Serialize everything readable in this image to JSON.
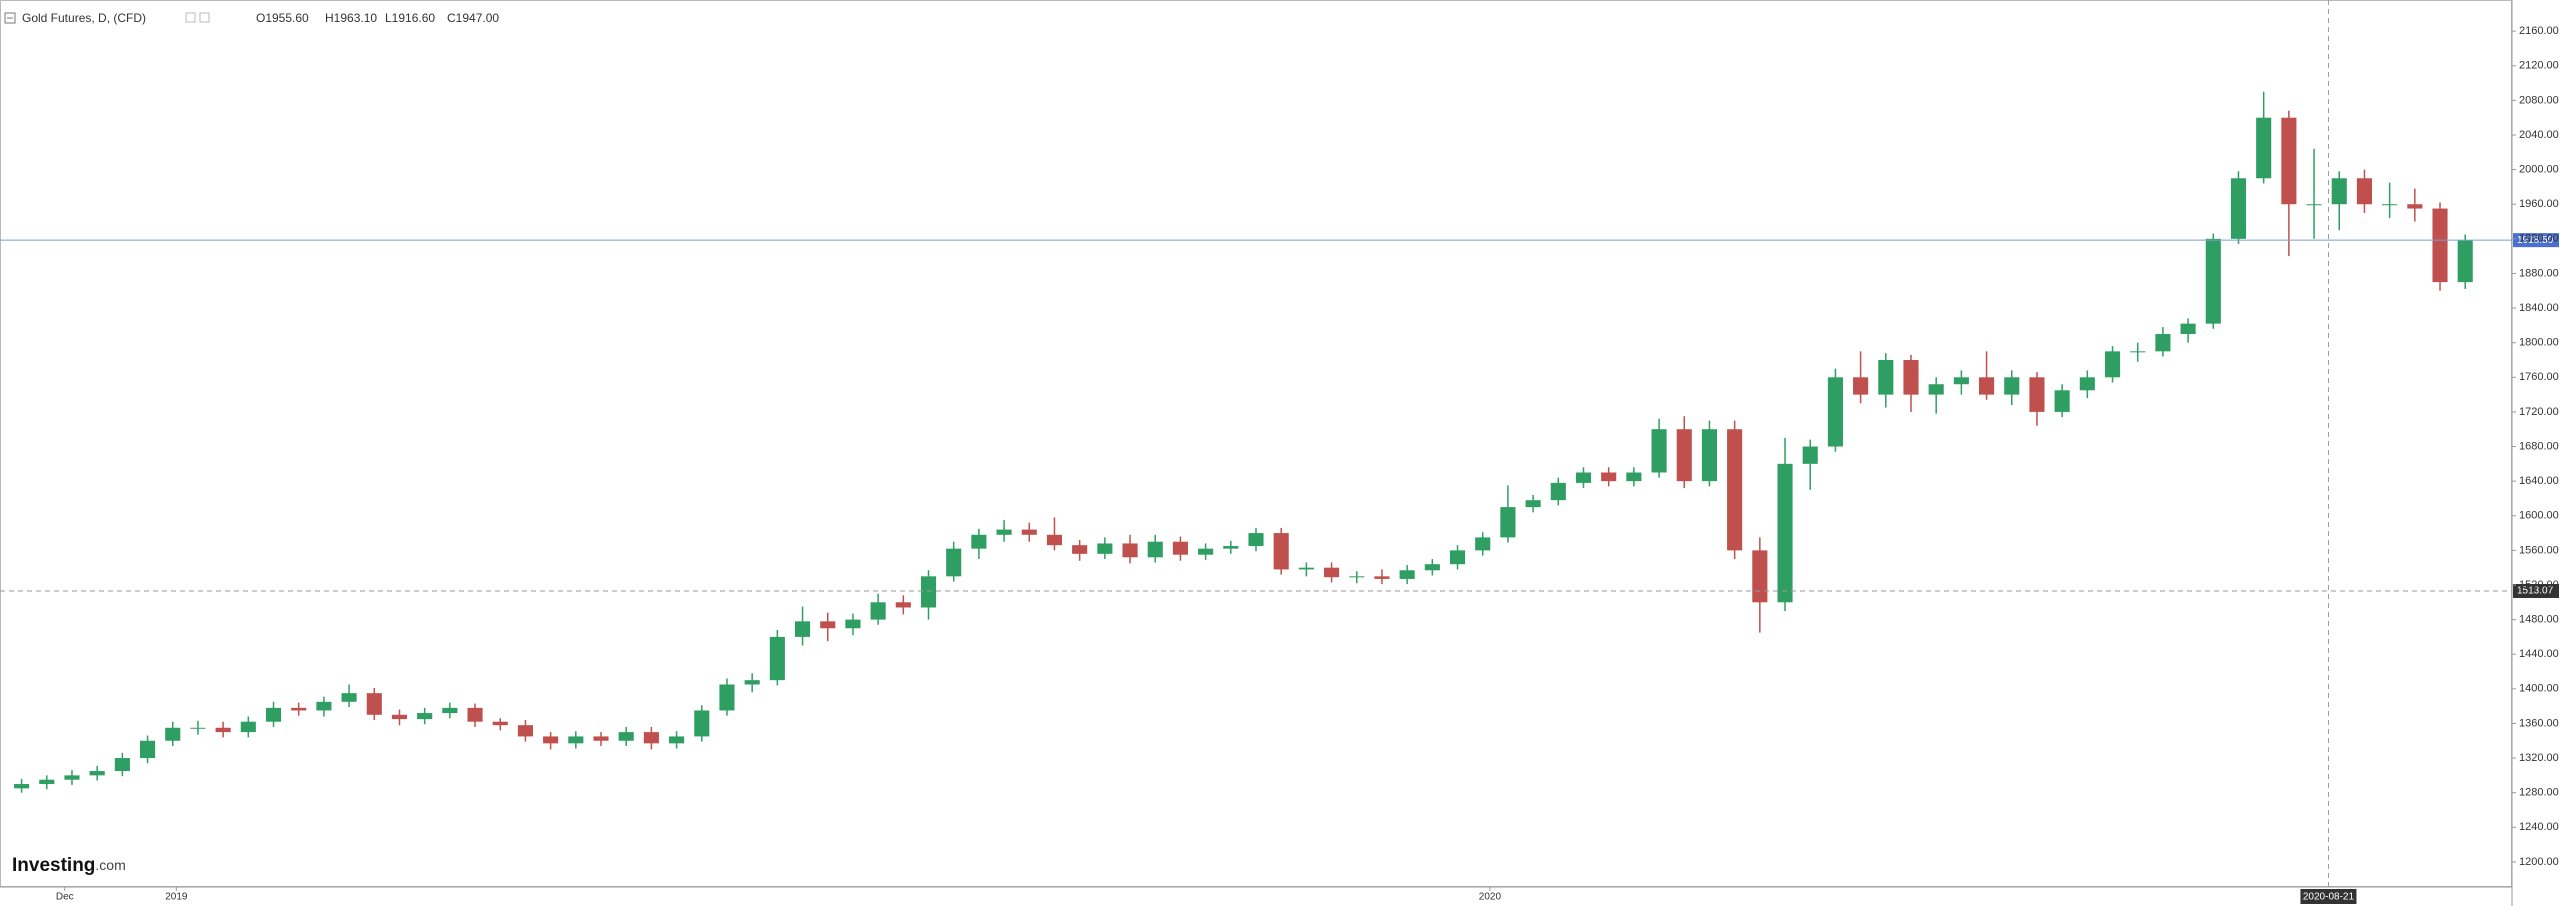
{
  "chart_data": {
    "type": "candlestick",
    "title": "Gold Futures, D, (CFD)",
    "header_values": [
      "O1955.60",
      "H1963.10",
      "L1916.60",
      "C1947.00"
    ],
    "watermark": [
      "Investing",
      ".com"
    ],
    "up_color": "#2f9e63",
    "down_color": "#c0504d",
    "x": [
      "2018-11-19",
      "2018-11-26",
      "2018-12-03",
      "2018-12-10",
      "2018-12-17",
      "2018-12-24",
      "2018-12-31",
      "2019-01-07",
      "2019-01-14",
      "2019-01-21",
      "2019-01-28",
      "2019-02-04",
      "2019-02-11",
      "2019-02-18",
      "2019-02-25",
      "2019-03-04",
      "2019-03-11",
      "2019-03-18",
      "2019-03-25",
      "2019-04-01",
      "2019-04-08",
      "2019-04-15",
      "2019-04-22",
      "2019-04-29",
      "2019-05-06",
      "2019-05-13",
      "2019-05-20",
      "2019-05-27",
      "2019-06-03",
      "2019-06-10",
      "2019-06-17",
      "2019-06-24",
      "2019-07-01",
      "2019-07-08",
      "2019-07-15",
      "2019-07-22",
      "2019-07-29",
      "2019-08-05",
      "2019-08-12",
      "2019-08-19",
      "2019-08-26",
      "2019-09-02",
      "2019-09-09",
      "2019-09-16",
      "2019-09-23",
      "2019-09-30",
      "2019-10-07",
      "2019-10-14",
      "2019-10-21",
      "2019-10-28",
      "2019-11-04",
      "2019-11-11",
      "2019-11-18",
      "2019-11-25",
      "2019-12-02",
      "2019-12-09",
      "2019-12-16",
      "2019-12-23",
      "2019-12-30",
      "2020-01-06",
      "2020-01-13",
      "2020-01-20",
      "2020-01-27",
      "2020-02-03",
      "2020-02-10",
      "2020-02-17",
      "2020-02-24",
      "2020-03-02",
      "2020-03-09",
      "2020-03-16",
      "2020-03-23",
      "2020-03-30",
      "2020-04-06",
      "2020-04-13",
      "2020-04-20",
      "2020-04-27",
      "2020-05-04",
      "2020-05-11",
      "2020-05-18",
      "2020-05-25",
      "2020-06-01",
      "2020-06-08",
      "2020-06-15",
      "2020-06-22",
      "2020-06-29",
      "2020-07-06",
      "2020-07-13",
      "2020-07-20",
      "2020-07-27",
      "2020-08-03",
      "2020-08-10",
      "2020-08-17",
      "2020-08-24",
      "2020-08-31",
      "2020-09-07",
      "2020-09-14",
      "2020-09-21",
      "2020-09-28"
    ],
    "ohlc": [
      [
        1285,
        1296,
        1280,
        1290
      ],
      [
        1290,
        1300,
        1284,
        1295
      ],
      [
        1295,
        1306,
        1289,
        1300
      ],
      [
        1300,
        1311,
        1294,
        1305
      ],
      [
        1305,
        1326,
        1299,
        1320
      ],
      [
        1320,
        1346,
        1314,
        1340
      ],
      [
        1340,
        1362,
        1334,
        1355
      ],
      [
        1355,
        1363,
        1347,
        1355
      ],
      [
        1355,
        1362,
        1344,
        1350
      ],
      [
        1350,
        1368,
        1344,
        1362
      ],
      [
        1362,
        1385,
        1356,
        1378
      ],
      [
        1378,
        1384,
        1369,
        1375
      ],
      [
        1375,
        1391,
        1368,
        1385
      ],
      [
        1385,
        1405,
        1379,
        1395
      ],
      [
        1395,
        1401,
        1364,
        1370
      ],
      [
        1370,
        1376,
        1358,
        1365
      ],
      [
        1365,
        1378,
        1359,
        1372
      ],
      [
        1372,
        1384,
        1366,
        1378
      ],
      [
        1378,
        1383,
        1356,
        1362
      ],
      [
        1362,
        1366,
        1352,
        1358
      ],
      [
        1358,
        1364,
        1339,
        1345
      ],
      [
        1345,
        1350,
        1330,
        1337
      ],
      [
        1337,
        1351,
        1331,
        1345
      ],
      [
        1345,
        1350,
        1334,
        1340
      ],
      [
        1340,
        1356,
        1334,
        1350
      ],
      [
        1350,
        1356,
        1330,
        1337
      ],
      [
        1337,
        1351,
        1331,
        1345
      ],
      [
        1345,
        1381,
        1339,
        1375
      ],
      [
        1375,
        1412,
        1369,
        1405
      ],
      [
        1405,
        1418,
        1396,
        1410
      ],
      [
        1410,
        1468,
        1404,
        1460
      ],
      [
        1460,
        1495,
        1450,
        1478
      ],
      [
        1478,
        1488,
        1455,
        1470
      ],
      [
        1470,
        1487,
        1462,
        1480
      ],
      [
        1480,
        1510,
        1474,
        1500
      ],
      [
        1500,
        1508,
        1486,
        1494
      ],
      [
        1494,
        1537,
        1480,
        1530
      ],
      [
        1530,
        1570,
        1524,
        1562
      ],
      [
        1562,
        1585,
        1550,
        1578
      ],
      [
        1578,
        1595,
        1570,
        1584
      ],
      [
        1584,
        1592,
        1570,
        1578
      ],
      [
        1578,
        1598,
        1560,
        1566
      ],
      [
        1566,
        1572,
        1548,
        1556
      ],
      [
        1556,
        1575,
        1550,
        1568
      ],
      [
        1568,
        1578,
        1545,
        1552
      ],
      [
        1552,
        1578,
        1546,
        1570
      ],
      [
        1570,
        1576,
        1548,
        1555
      ],
      [
        1555,
        1568,
        1549,
        1562
      ],
      [
        1562,
        1571,
        1556,
        1565
      ],
      [
        1565,
        1586,
        1559,
        1580
      ],
      [
        1580,
        1586,
        1532,
        1538
      ],
      [
        1538,
        1546,
        1530,
        1540
      ],
      [
        1540,
        1546,
        1523,
        1529
      ],
      [
        1529,
        1536,
        1522,
        1530
      ],
      [
        1530,
        1538,
        1521,
        1527
      ],
      [
        1527,
        1543,
        1521,
        1537
      ],
      [
        1537,
        1550,
        1531,
        1544
      ],
      [
        1544,
        1566,
        1538,
        1560
      ],
      [
        1560,
        1581,
        1554,
        1575
      ],
      [
        1575,
        1635,
        1569,
        1610
      ],
      [
        1610,
        1624,
        1604,
        1618
      ],
      [
        1618,
        1644,
        1612,
        1638
      ],
      [
        1638,
        1656,
        1632,
        1650
      ],
      [
        1650,
        1656,
        1634,
        1640
      ],
      [
        1640,
        1656,
        1634,
        1650
      ],
      [
        1650,
        1712,
        1644,
        1700
      ],
      [
        1700,
        1715,
        1632,
        1640
      ],
      [
        1640,
        1710,
        1634,
        1700
      ],
      [
        1700,
        1710,
        1550,
        1560
      ],
      [
        1560,
        1575,
        1465,
        1500
      ],
      [
        1500,
        1690,
        1490,
        1660
      ],
      [
        1660,
        1688,
        1630,
        1680
      ],
      [
        1680,
        1770,
        1674,
        1760
      ],
      [
        1760,
        1790,
        1730,
        1740
      ],
      [
        1740,
        1788,
        1725,
        1780
      ],
      [
        1780,
        1786,
        1720,
        1740
      ],
      [
        1740,
        1760,
        1718,
        1752
      ],
      [
        1752,
        1768,
        1740,
        1760
      ],
      [
        1760,
        1790,
        1734,
        1740
      ],
      [
        1740,
        1768,
        1728,
        1760
      ],
      [
        1760,
        1766,
        1704,
        1720
      ],
      [
        1720,
        1752,
        1714,
        1745
      ],
      [
        1745,
        1768,
        1736,
        1760
      ],
      [
        1760,
        1796,
        1754,
        1790
      ],
      [
        1790,
        1800,
        1778,
        1790
      ],
      [
        1790,
        1818,
        1784,
        1810
      ],
      [
        1810,
        1828,
        1800,
        1822
      ],
      [
        1822,
        1926,
        1816,
        1920
      ],
      [
        1920,
        1998,
        1914,
        1990
      ],
      [
        1990,
        2090,
        1984,
        2060
      ],
      [
        2060,
        2068,
        1900,
        1960
      ],
      [
        1960,
        2024,
        1920,
        1960
      ],
      [
        1960,
        1998,
        1930,
        1990
      ],
      [
        1990,
        2000,
        1950,
        1960
      ],
      [
        1960,
        1985,
        1944,
        1960
      ],
      [
        1960,
        1978,
        1940,
        1955
      ],
      [
        1955,
        1962,
        1860,
        1870
      ],
      [
        1870,
        1925,
        1862,
        1918
      ]
    ],
    "xlim": [
      "2018-11-13",
      "2020-10-11"
    ],
    "xticks": [
      {
        "value": "2018-12-01",
        "label": "Dec"
      },
      {
        "value": "2019-01-01",
        "label": "2019"
      },
      {
        "value": "2020-01-01",
        "label": "2020"
      }
    ],
    "ylim": [
      1171,
      2196
    ],
    "yticks": [
      {
        "value": 1200,
        "label": "1200.00"
      },
      {
        "value": 1240,
        "label": "1240.00"
      },
      {
        "value": 1280,
        "label": "1280.00"
      },
      {
        "value": 1320,
        "label": "1320.00"
      },
      {
        "value": 1360,
        "label": "1360.00"
      },
      {
        "value": 1400,
        "label": "1400.00"
      },
      {
        "value": 1440,
        "label": "1440.00"
      },
      {
        "value": 1480,
        "label": "1480.00"
      },
      {
        "value": 1520,
        "label": "1520.00"
      },
      {
        "value": 1560,
        "label": "1560.00"
      },
      {
        "value": 1600,
        "label": "1600.00"
      },
      {
        "value": 1640,
        "label": "1640.00"
      },
      {
        "value": 1680,
        "label": "1680.00"
      },
      {
        "value": 1720,
        "label": "1720.00"
      },
      {
        "value": 1760,
        "label": "1760.00"
      },
      {
        "value": 1800,
        "label": "1800.00"
      },
      {
        "value": 1840,
        "label": "1840.00"
      },
      {
        "value": 1880,
        "label": "1880.00"
      },
      {
        "value": 1920,
        "label": "1920.00"
      },
      {
        "value": 1960,
        "label": "1960.00"
      },
      {
        "value": 2000,
        "label": "2000.00"
      },
      {
        "value": 2040,
        "label": "2040.00"
      },
      {
        "value": 2080,
        "label": "2080.00"
      },
      {
        "value": 2120,
        "label": "2120.00"
      },
      {
        "value": 2160,
        "label": "2160.00"
      }
    ],
    "last_price": {
      "value": 1918.5,
      "label": "1918.50"
    },
    "crosshair_price": {
      "value": 1513.07,
      "label": "1513.07"
    },
    "crosshair_date": "2020-08-21"
  }
}
